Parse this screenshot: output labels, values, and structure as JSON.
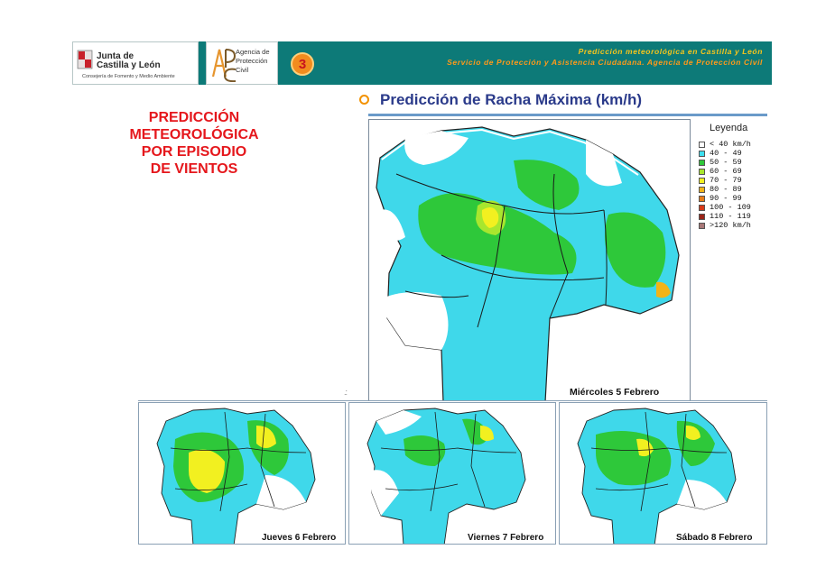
{
  "header": {
    "jcyl_line1": "Junta de",
    "jcyl_line2": "Castilla y León",
    "jcyl_line3": "Consejería de Fomento y Medio Ambiente",
    "apc_line1": "Agencia de",
    "apc_line2": "Protección",
    "apc_line3": "Civil",
    "badge": "3",
    "right_line1": "Predicción meteorológica en Castilla y León",
    "right_line2": "Servicio de Protección y Asistencia Ciudadana. Agencia de Protección Civil"
  },
  "left_title": [
    "PREDICCIÓN",
    "METEOROLÓGICA",
    "POR EPISODIO",
    "DE VIENTOS"
  ],
  "section_title": "Predicción de Racha Máxima (km/h)",
  "legend": {
    "title": "Leyenda",
    "items": [
      {
        "label": "< 40 km/h",
        "color": "#ffffff"
      },
      {
        "label": "40 - 49",
        "color": "#3de0f0"
      },
      {
        "label": "50 - 59",
        "color": "#2ec83a"
      },
      {
        "label": "60 - 69",
        "color": "#a8e62e"
      },
      {
        "label": "70 - 79",
        "color": "#f2f020"
      },
      {
        "label": "80 - 89",
        "color": "#f2b418"
      },
      {
        "label": "90 - 99",
        "color": "#e87c18"
      },
      {
        "label": "100 - 109",
        "color": "#d83a18"
      },
      {
        "label": "110 - 119",
        "color": "#9a2418"
      },
      {
        "label": ">120 km/h",
        "color": "#a87878"
      }
    ]
  },
  "panels": {
    "main": "Miércoles 5 Febrero",
    "thu": "Jueves 6 Febrero",
    "fri": "Viernes 7 Febrero",
    "sat": "Sábado 8 Febrero"
  }
}
